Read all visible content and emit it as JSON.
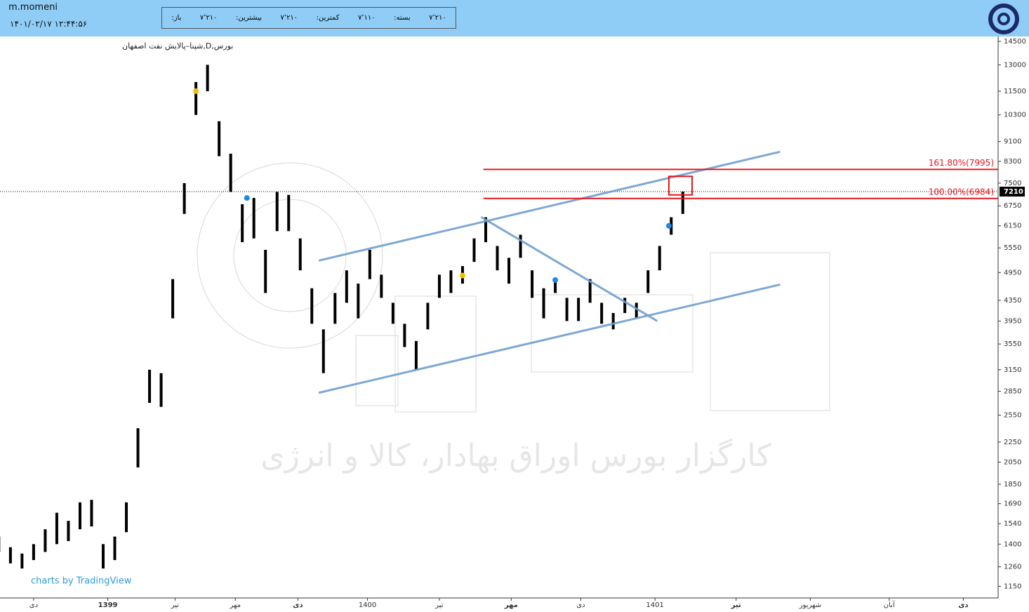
{
  "header": {
    "user": "m.momeni",
    "datetime": "۱۴۰۱/۰۲/۱۷ ۱۲:۴۴:۵۶",
    "info": [
      {
        "label": "باز:",
        "value": "۷٬۲۱۰"
      },
      {
        "label": "بیشترین:",
        "value": "۷٬۲۱۰"
      },
      {
        "label": "کمترین:",
        "value": "۷٬۱۱۰"
      },
      {
        "label": "بسته:",
        "value": "۷٬۲۱۰"
      }
    ]
  },
  "chart_data": {
    "type": "range_bar",
    "title": "بورس,D,شپنا–پالایش نفت اصفهان",
    "watermark": "کارگزار بورس اوراق بهادار، کالا و انرژی",
    "credit": "charts by TradingView",
    "x": [
      -1.5,
      -1,
      -0.5,
      0,
      0.5,
      1,
      1.5,
      2,
      2.5,
      3,
      3.5,
      4,
      4.5,
      5,
      5.5,
      6,
      6.5,
      7,
      7.5,
      8,
      8.5,
      9,
      9.5,
      10,
      10.5,
      11,
      11.5,
      12,
      12.5,
      13,
      13.5,
      14,
      14.5,
      15,
      15.5,
      16,
      16.5,
      17,
      17.5,
      18,
      18.5,
      19,
      19.5,
      20,
      20.5,
      21,
      21.5,
      22,
      22.5,
      23,
      23.5,
      24,
      24.5,
      25,
      25.5,
      26,
      26.5,
      27,
      27.5,
      28
    ],
    "high": [
      1450,
      1380,
      1340,
      1400,
      1500,
      1620,
      1560,
      1700,
      1720,
      1400,
      1450,
      1700,
      2400,
      3150,
      3100,
      4800,
      7500,
      12000,
      13000,
      10000,
      8600,
      6800,
      7000,
      5500,
      7200,
      7100,
      5800,
      4600,
      3800,
      4500,
      5000,
      4700,
      5500,
      4900,
      4300,
      3900,
      3600,
      4300,
      4900,
      5000,
      5100,
      5800,
      6400,
      5600,
      5300,
      5900,
      5000,
      4600,
      4800,
      4400,
      4400,
      4800,
      4300,
      4100,
      4400,
      4300,
      5000,
      5600,
      6400,
      7210
    ],
    "low": [
      1350,
      1280,
      1250,
      1300,
      1350,
      1400,
      1420,
      1500,
      1520,
      1250,
      1300,
      1480,
      2000,
      2700,
      2650,
      4000,
      6500,
      10300,
      11500,
      8500,
      7200,
      5700,
      5800,
      4500,
      6000,
      6000,
      5000,
      3900,
      3100,
      3900,
      4300,
      4000,
      4800,
      4400,
      3900,
      3500,
      3150,
      3800,
      4400,
      4500,
      4700,
      5200,
      5700,
      5000,
      4700,
      5300,
      4400,
      4000,
      4500,
      3950,
      3950,
      4300,
      3900,
      3800,
      4100,
      4000,
      4500,
      5000,
      5900,
      6500
    ],
    "color": "#000000",
    "log": true,
    "xlim": [
      -1.45,
      41.6
    ],
    "ylim": [
      1090,
      14830
    ],
    "xticks": [
      {
        "value": 0,
        "label": "دی"
      },
      {
        "value": 3.2,
        "label": "1399"
      },
      {
        "value": 6.1,
        "label": "تیر"
      },
      {
        "value": 8.7,
        "label": "مهر"
      },
      {
        "value": 11.4,
        "label": "دی"
      },
      {
        "value": 14.4,
        "label": "1400"
      },
      {
        "value": 17.5,
        "label": "تیر"
      },
      {
        "value": 20.6,
        "label": "مهر"
      },
      {
        "value": 23.6,
        "label": "دی"
      },
      {
        "value": 26.8,
        "label": "1401"
      },
      {
        "value": 30.3,
        "label": "تیر"
      },
      {
        "value": 33.5,
        "label": "شهریور"
      },
      {
        "value": 36.9,
        "label": "آبان"
      },
      {
        "value": 40.1,
        "label": "دی"
      }
    ],
    "yticks": [
      1150,
      1260,
      1400,
      1540,
      1690,
      1850,
      2050,
      2250,
      2550,
      2850,
      3150,
      3550,
      3950,
      4350,
      4950,
      5550,
      6150,
      6750,
      7500,
      8300,
      9100,
      10300,
      11500,
      13000,
      14500
    ],
    "last": 7210,
    "trend_lines": [
      {
        "x": [
          12.3,
          32.2
        ],
        "y": [
          5232,
          8680
        ]
      },
      {
        "x": [
          12.3,
          32.2
        ],
        "y": [
          2830,
          4680
        ]
      },
      {
        "x": [
          19.3,
          26.9
        ],
        "y": [
          6406,
          3950
        ]
      }
    ],
    "trend_color": "#6f9fd0",
    "levels": [
      {
        "label": "161.80%(7995)",
        "value": 7995
      },
      {
        "label": "100.00%(6984)",
        "value": 6984
      }
    ],
    "level_x_start": 19.4,
    "level_color": "#e8141c",
    "box": {
      "x": [
        27.4,
        28.4
      ],
      "y": [
        7100,
        7740
      ]
    },
    "markers": [
      {
        "x": 7.0,
        "y": 11500,
        "color": "#f2c200"
      },
      {
        "x": 9.2,
        "y": 7000,
        "color": "#1e88e5"
      },
      {
        "x": 18.5,
        "y": 4880,
        "color": "#f2c200"
      },
      {
        "x": 22.5,
        "y": 4780,
        "color": "#1e88e5"
      },
      {
        "x": 27.4,
        "y": 6150,
        "color": "#1e88e5"
      }
    ]
  }
}
